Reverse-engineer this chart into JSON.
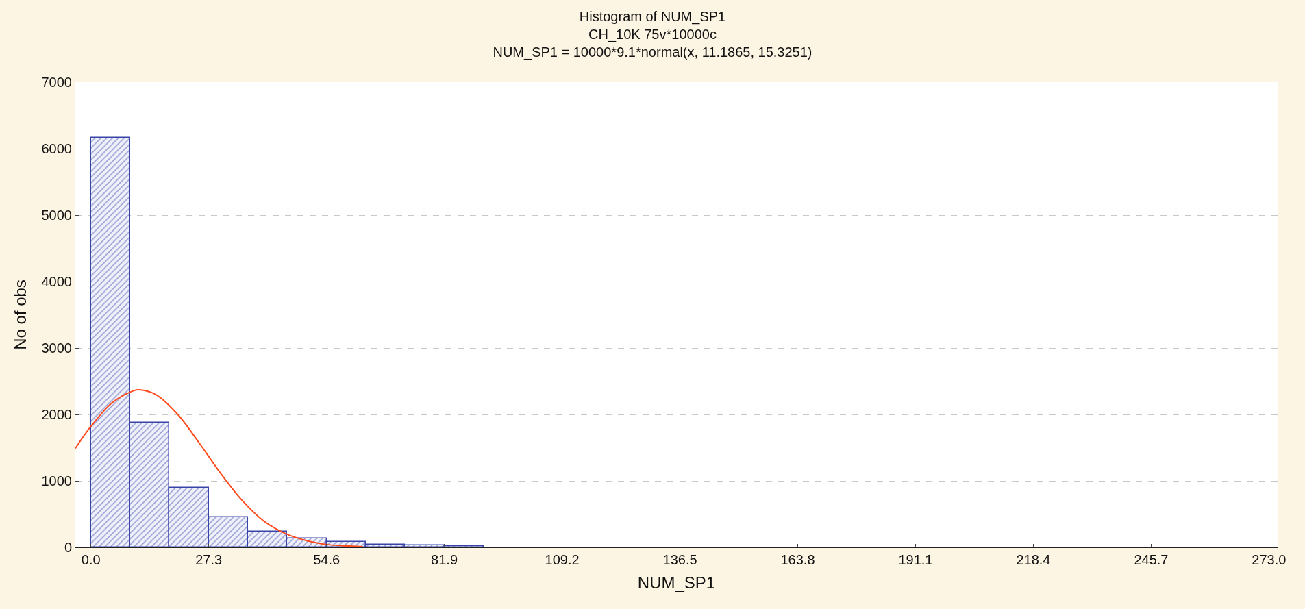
{
  "chart_data": {
    "type": "histogram",
    "title": "Histogram of NUM_SP1",
    "subtitle": "CH_10K 75v*10000c\nNUM_SP1 = 10000*9.1*normal(x, 11.1865, 15.3251)",
    "xlabel": "NUM_SP1",
    "ylabel": "No of obs",
    "bins": [
      0,
      9.1,
      18.2,
      27.3,
      36.4,
      45.5,
      54.6,
      63.7,
      72.8,
      81.9,
      91
    ],
    "values": [
      6160,
      1880,
      900,
      450,
      240,
      130,
      80,
      40,
      30,
      20
    ],
    "color": "#3a44a8",
    "series": [
      {
        "type": "line",
        "color": "#ff4a1c",
        "x": [
          -3.6,
          0,
          5,
          10,
          11.19,
          15,
          20,
          25,
          30,
          35,
          40,
          45,
          50,
          55,
          60,
          63
        ],
        "values": [
          1490,
          1820,
          2180,
          2360,
          2370,
          2300,
          2010,
          1580,
          1120,
          710,
          400,
          210,
          100,
          40,
          20,
          10
        ]
      }
    ],
    "xlim": [
      -3.6,
      275
    ],
    "ylim": [
      0,
      7000
    ],
    "xticks": [
      {
        "value": 0,
        "label": "0.0"
      },
      27.3,
      54.6,
      81.9,
      109.2,
      136.5,
      163.8,
      191.1,
      218.4,
      245.7,
      {
        "value": 273,
        "label": "273.0"
      }
    ],
    "yticks": [
      0,
      1000,
      2000,
      3000,
      4000,
      5000,
      6000,
      7000
    ],
    "grid": "y"
  }
}
